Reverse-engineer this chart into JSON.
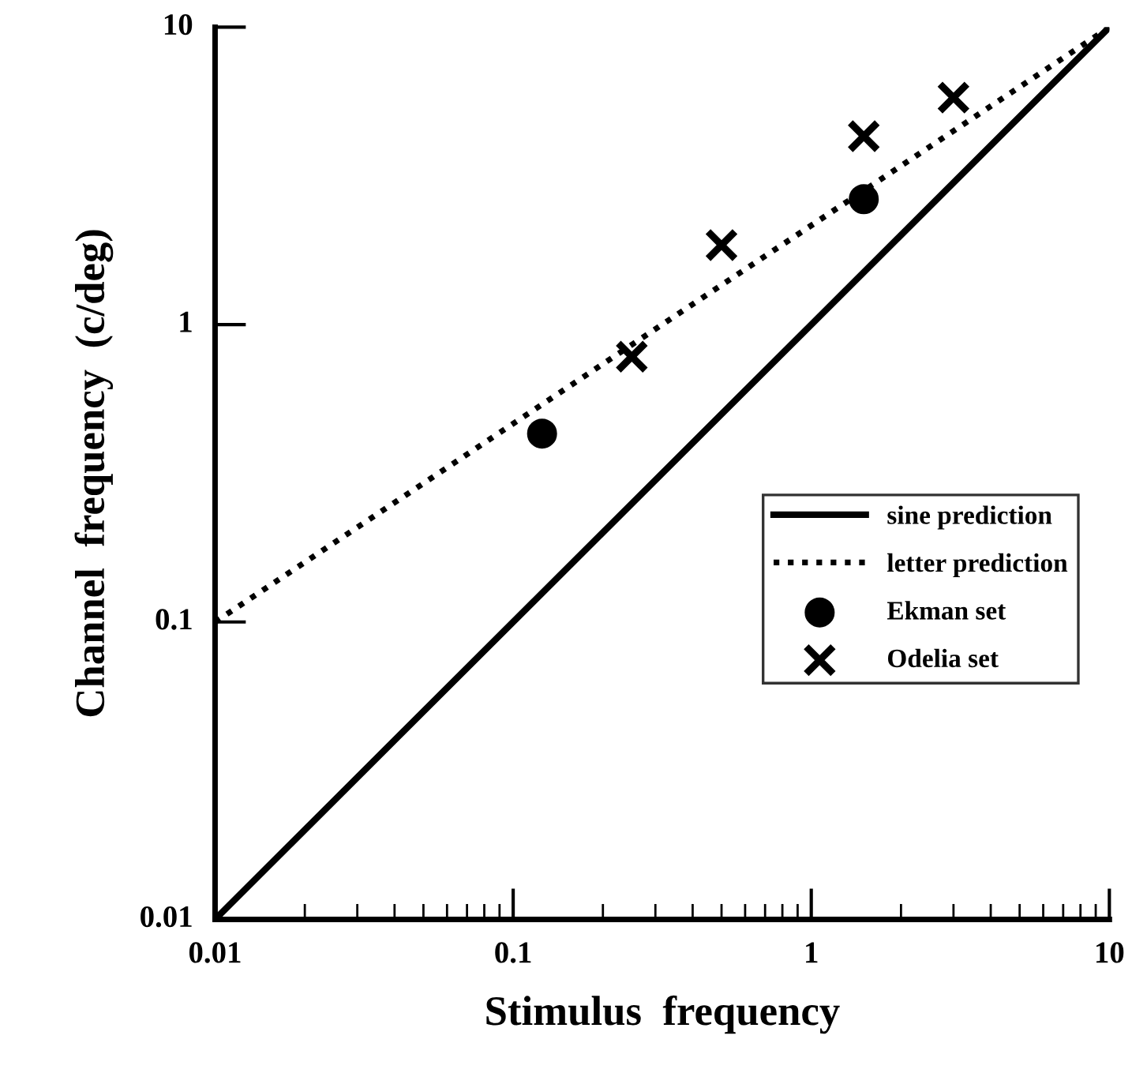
{
  "chart_data": {
    "type": "scatter",
    "xlabel": "Stimulus  frequency",
    "ylabel": "Channel  frequency  (c/deg)",
    "log": "xy",
    "xlim": [
      0.01,
      10
    ],
    "ylim": [
      0.01,
      10
    ],
    "xticks": [
      0.01,
      0.1,
      1,
      10
    ],
    "yticks": [
      0.01,
      0.1,
      1,
      10
    ],
    "grid": false,
    "legend": "bottom right",
    "series": [
      {
        "name": "sine prediction",
        "type": "line",
        "line_style": "solid",
        "marker": "none",
        "color": "#000000",
        "x": [
          0.01,
          10
        ],
        "values": [
          0.01,
          10
        ]
      },
      {
        "name": "letter prediction",
        "type": "line",
        "line_style": "dotted",
        "marker": "none",
        "color": "#000000",
        "x": [
          0.01,
          10
        ],
        "values": [
          0.1,
          10
        ]
      },
      {
        "name": "Ekman set",
        "marker": "circle",
        "color": "#000000",
        "x": [
          0.125,
          1.5
        ],
        "values": [
          0.43,
          2.64
        ]
      },
      {
        "name": "Odelia set",
        "marker": "cross",
        "color": "#000000",
        "x": [
          0.25,
          0.5,
          1.5,
          3
        ],
        "values": [
          0.78,
          1.85,
          4.3,
          5.8
        ]
      }
    ]
  }
}
